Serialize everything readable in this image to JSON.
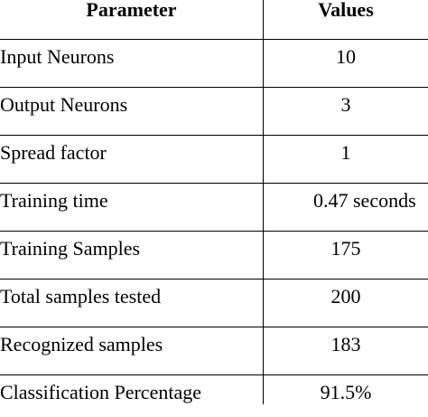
{
  "table": {
    "headers": {
      "parameter": "Parameter",
      "values": "Values"
    },
    "rows": [
      {
        "parameter": "Input Neurons",
        "value": "10"
      },
      {
        "parameter": "Output Neurons",
        "value": "3"
      },
      {
        "parameter": "Spread factor",
        "value": "1"
      },
      {
        "parameter": "Training time",
        "value": "0.47 seconds"
      },
      {
        "parameter": "Training Samples",
        "value": "175"
      },
      {
        "parameter": "Total samples tested",
        "value": "200"
      },
      {
        "parameter": "Recognized samples",
        "value": "183"
      },
      {
        "parameter": "Classification Percentage",
        "value": "91.5%"
      }
    ]
  }
}
